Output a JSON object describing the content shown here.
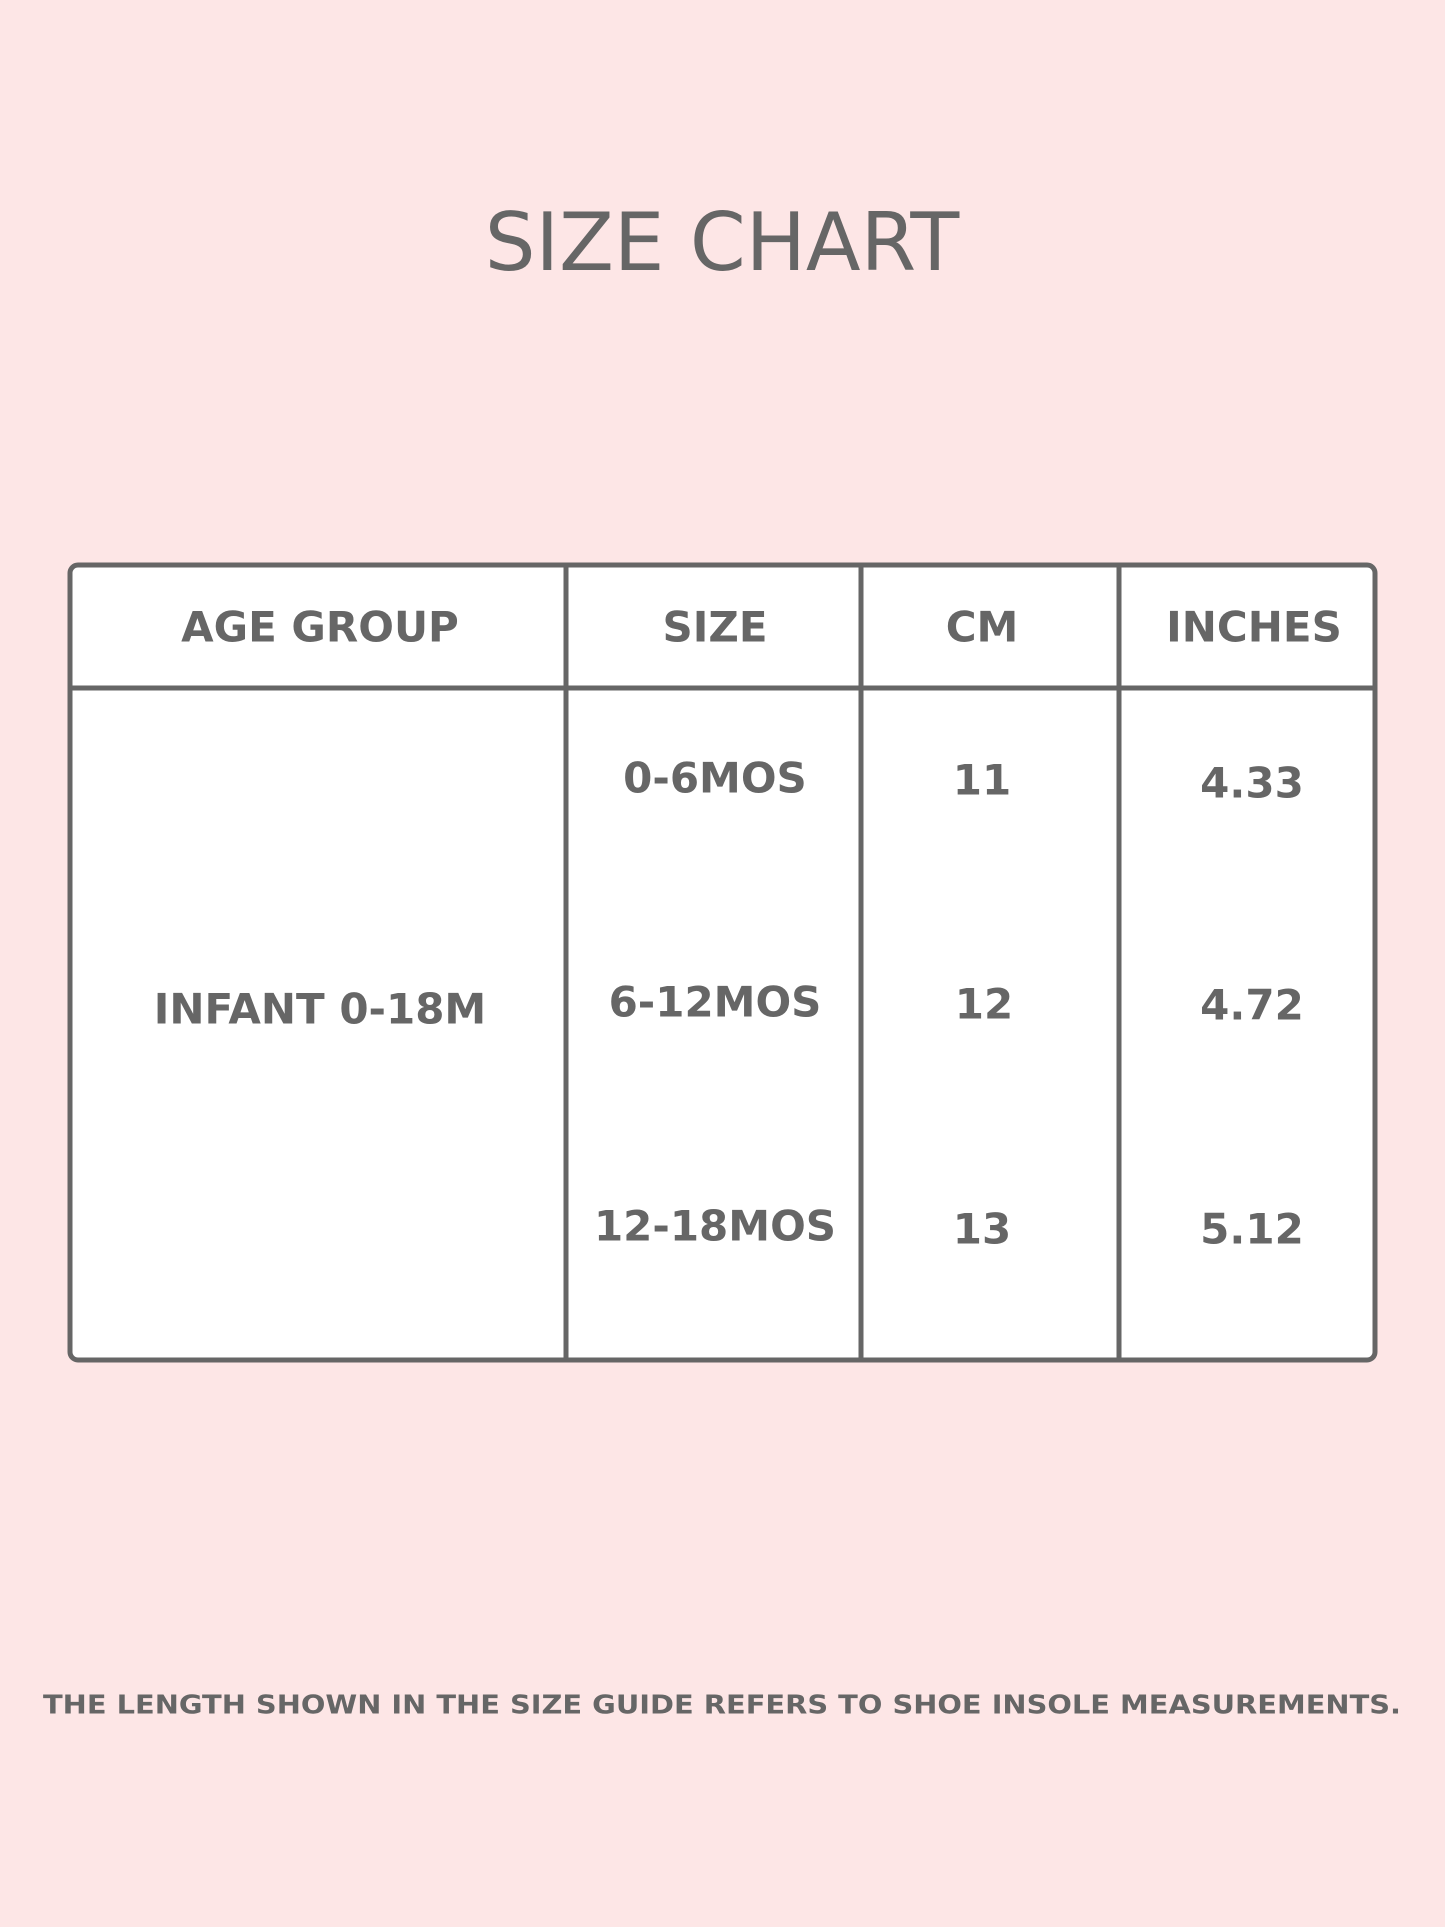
{
  "title": "SIZE CHART",
  "table": {
    "header": [
      "AGE GROUP",
      "SIZE",
      "CM",
      "INCHES"
    ],
    "age_group": "INFANT 0-18M",
    "rows": [
      [
        "0-6MOS",
        11,
        4.33
      ],
      [
        "6-12MOS",
        12,
        4.72
      ],
      [
        "12-18MOS",
        13,
        5.12
      ]
    ]
  },
  "note": "THE LENGTH SHOWN IN THE SIZE GUIDE REFERS TO SHOE INSOLE MEASUREMENTS."
}
